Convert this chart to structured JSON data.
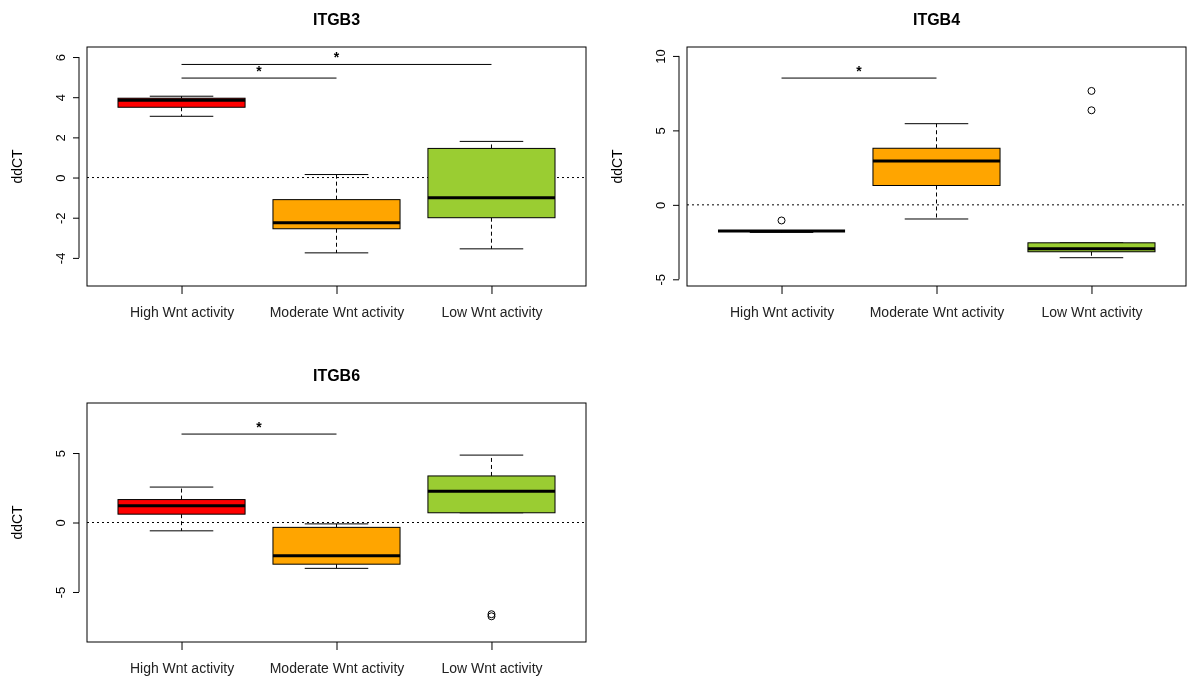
{
  "chart_data": [
    {
      "type": "box",
      "title": "ITGB3",
      "ylabel": "ddCT",
      "categories": [
        "High Wnt activity",
        "Moderate Wnt activity",
        "Low Wnt activity"
      ],
      "colors": [
        "#ff0000",
        "#ffa500",
        "#9acd32"
      ],
      "boxes": [
        {
          "low": 3.05,
          "q1": 3.5,
          "median": 3.85,
          "q3": 3.95,
          "high": 4.05
        },
        {
          "low": -3.75,
          "q1": -2.55,
          "median": -2.25,
          "q3": -1.1,
          "high": 0.15
        },
        {
          "low": -3.55,
          "q1": -2.0,
          "median": -1.0,
          "q3": 1.45,
          "high": 1.8
        }
      ],
      "ylim": [
        -5.4,
        6.5
      ],
      "yticks": [
        -4,
        -2,
        0,
        2,
        4,
        6
      ],
      "ref_lines": [
        {
          "axis": "y",
          "value": 0,
          "line_style": "dotted"
        }
      ],
      "annotations": [
        "*",
        "*"
      ]
    },
    {
      "type": "box",
      "title": "ITGB4",
      "ylabel": "ddCT",
      "categories": [
        "High Wnt activity",
        "Moderate Wnt activity",
        "Low Wnt activity"
      ],
      "colors": [
        "#000000",
        "#ffa500",
        "#9acd32"
      ],
      "boxes": [
        {
          "low": -1.85,
          "q1": -1.75,
          "median": -1.75,
          "q3": -1.75,
          "high": -1.75,
          "outliers": [
            -1.05
          ]
        },
        {
          "low": -0.95,
          "q1": 1.3,
          "median": 2.95,
          "q3": 3.8,
          "high": 5.45
        },
        {
          "low": -3.55,
          "q1": -3.15,
          "median": -2.95,
          "q3": -2.55,
          "high": -2.55,
          "outliers": [
            6.35,
            7.65
          ]
        }
      ],
      "ylim": [
        -5.45,
        10.6
      ],
      "yticks": [
        -5,
        0,
        5,
        10
      ],
      "ref_lines": [
        {
          "axis": "y",
          "value": 0,
          "line_style": "dotted"
        }
      ],
      "annotations": [
        "*"
      ]
    },
    {
      "type": "box",
      "title": "ITGB6",
      "ylabel": "ddCT",
      "categories": [
        "High Wnt activity",
        "Moderate Wnt activity",
        "Low Wnt activity"
      ],
      "colors": [
        "#ff0000",
        "#ffa500",
        "#9acd32"
      ],
      "boxes": [
        {
          "low": -0.6,
          "q1": 0.6,
          "median": 1.2,
          "q3": 1.65,
          "high": 2.55
        },
        {
          "low": -3.3,
          "q1": -3.0,
          "median": -2.4,
          "q3": -0.35,
          "high": -0.1
        },
        {
          "low": 0.7,
          "q1": 0.7,
          "median": 2.25,
          "q3": 3.35,
          "high": 4.85,
          "outliers": [
            -6.6,
            -6.75
          ]
        }
      ],
      "ylim": [
        -8.6,
        8.6
      ],
      "yticks": [
        -5,
        0,
        5
      ],
      "ref_lines": [
        {
          "axis": "y",
          "value": 0,
          "line_style": "dotted"
        }
      ],
      "annotations": [
        "*"
      ]
    }
  ]
}
